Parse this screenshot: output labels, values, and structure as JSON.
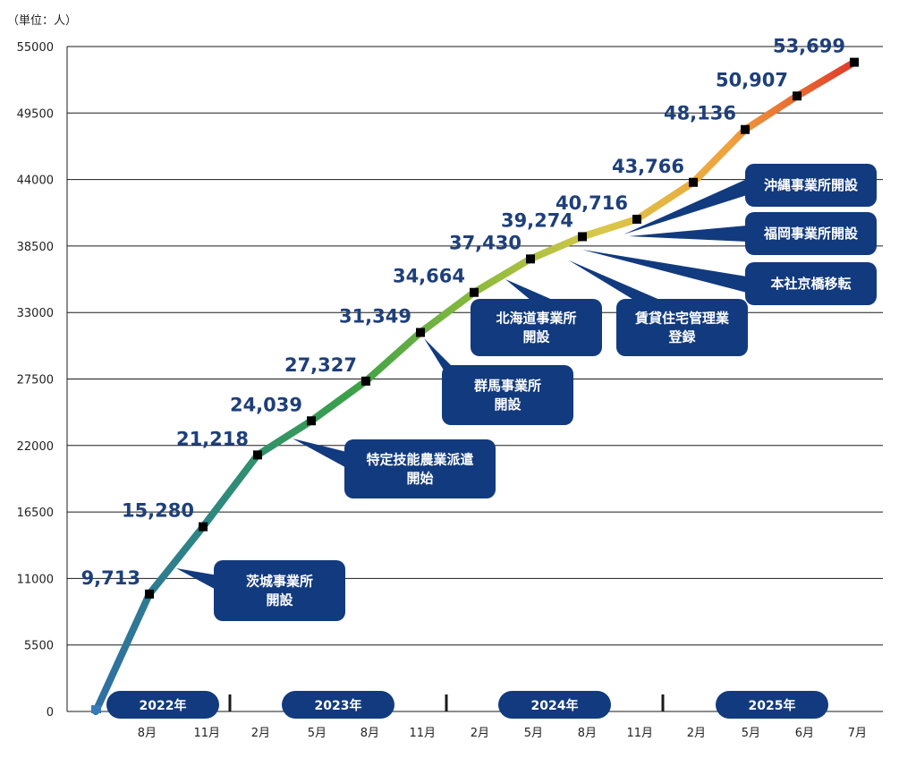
{
  "chart_data": {
    "type": "line",
    "unit_label": "（単位：人）",
    "yticks": [
      "55000",
      "49500",
      "44000",
      "38500",
      "33000",
      "27500",
      "22000",
      "16500",
      "11000",
      "5500",
      "0"
    ],
    "ylim": [
      0,
      55000
    ],
    "grid": true,
    "x_month_labels": [
      "8月",
      "11月",
      "2月",
      "5月",
      "8月",
      "11月",
      "2月",
      "5月",
      "8月",
      "11月",
      "2月",
      "5月",
      "6月",
      "7月"
    ],
    "years": [
      "2022年",
      "2023年",
      "2024年",
      "2025年"
    ],
    "series": [
      {
        "values": [
          0,
          9713,
          15280,
          21218,
          24039,
          27327,
          31349,
          34664,
          37430,
          39274,
          40716,
          43766,
          48136,
          50907,
          53699
        ],
        "labels": [
          "",
          "9,713",
          "15,280",
          "21,218",
          "24,039",
          "27,327",
          "31,349",
          "34,664",
          "37,430",
          "39,274",
          "40,716",
          "43,766",
          "48,136",
          "50,907",
          "53,699"
        ]
      }
    ],
    "annotations": [
      {
        "text": [
          "茨城事業所",
          "開設"
        ]
      },
      {
        "text": [
          "特定技能農業派遣",
          "開始"
        ]
      },
      {
        "text": [
          "群馬事業所",
          "開設"
        ]
      },
      {
        "text": [
          "北海道事業所",
          "開設"
        ]
      },
      {
        "text": [
          "賃貸住宅管理業",
          "登録"
        ]
      },
      {
        "text": [
          "本社京橋移転"
        ]
      },
      {
        "text": [
          "福岡事業所開設"
        ]
      },
      {
        "text": [
          "沖縄事業所開設"
        ]
      }
    ],
    "colors": {
      "grid": "#1a1a1a",
      "label": "#1e3f7a",
      "box": "#123a7e",
      "line_gradient": [
        "#2f6fa3",
        "#2e8a7b",
        "#3aa04a",
        "#8aba3c",
        "#d8c84a",
        "#f0a23c",
        "#e03a2a"
      ]
    }
  }
}
